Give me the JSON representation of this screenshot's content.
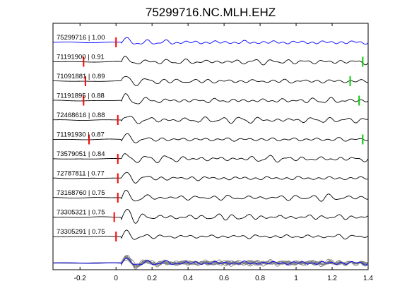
{
  "chart_data": {
    "type": "line",
    "title": "75299716.NC.MLH.EHZ",
    "xlabel": "",
    "ylabel": "",
    "xlim": [
      -0.35,
      1.4
    ],
    "xticks": [
      -0.2,
      0,
      0.2,
      0.4,
      0.6,
      0.8,
      1,
      1.2,
      1.4
    ],
    "xtick_labels": [
      "-0.2",
      "0",
      "0.2",
      "0.4",
      "0.6",
      "0.8",
      "1",
      "1.2",
      "1.4"
    ],
    "grid": false,
    "legend": "none",
    "colors": {
      "reference": "#0000ff",
      "trace": "#000000",
      "stack_trace": "#808080",
      "p_pick": "#ff0000",
      "s_pick": "#00cc00"
    },
    "traces": [
      {
        "label": "75299716 | 1.00",
        "p_pick": 0.0,
        "s_pick": null,
        "reference": true
      },
      {
        "label": "71191900 | 0.91",
        "p_pick": -0.18,
        "s_pick": 1.37
      },
      {
        "label": "71091881 | 0.89",
        "p_pick": -0.17,
        "s_pick": 1.3
      },
      {
        "label": "71191895 | 0.88",
        "p_pick": -0.18,
        "s_pick": 1.35
      },
      {
        "label": "72468616 | 0.88",
        "p_pick": 0.01,
        "s_pick": null
      },
      {
        "label": "71191930 | 0.87",
        "p_pick": -0.15,
        "s_pick": 1.37
      },
      {
        "label": "73579051 | 0.84",
        "p_pick": 0.01,
        "s_pick": null
      },
      {
        "label": "72787811 | 0.77",
        "p_pick": 0.01,
        "s_pick": null
      },
      {
        "label": "73168760 | 0.75",
        "p_pick": 0.01,
        "s_pick": null
      },
      {
        "label": "73305321 | 0.75",
        "p_pick": -0.01,
        "s_pick": null
      },
      {
        "label": "73305291 | 0.75",
        "p_pick": 0.0,
        "s_pick": null
      }
    ],
    "stack": {
      "reference_color": "blue",
      "others_color": "gray"
    }
  }
}
